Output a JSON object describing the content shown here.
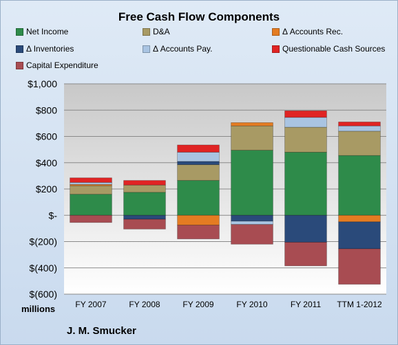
{
  "chart_data": {
    "type": "bar",
    "stacked": true,
    "title": "Free Cash Flow Components",
    "categories": [
      "FY 2007",
      "FY 2008",
      "FY 2009",
      "FY 2010",
      "FY 2011",
      "TTM 1-2012"
    ],
    "y_tick_labels": [
      "$1,000",
      "$800",
      "$600",
      "$400",
      "$200",
      "$-",
      "$(200)",
      "$(400)",
      "$(600)"
    ],
    "y_unit_label": "millions",
    "ylim": [
      -600,
      1000
    ],
    "grid": true,
    "legend_position": "top",
    "series": [
      {
        "name": "Net Income",
        "color": "#2e8b4a",
        "values": [
          160,
          175,
          265,
          495,
          480,
          455
        ]
      },
      {
        "name": "D&A",
        "color": "#a89a64",
        "values": [
          65,
          55,
          120,
          185,
          190,
          185
        ]
      },
      {
        "name": "Δ Accounts Rec.",
        "color": "#e47c22",
        "values": [
          10,
          0,
          -75,
          25,
          0,
          -50
        ]
      },
      {
        "name": "Δ Inventories",
        "color": "#2a4a7a",
        "values": [
          0,
          -30,
          25,
          -45,
          -205,
          -205
        ]
      },
      {
        "name": "Δ Accounts Pay.",
        "color": "#a9c4e2",
        "values": [
          15,
          0,
          70,
          -25,
          75,
          40
        ]
      },
      {
        "name": "Questionable Cash Sources",
        "color": "#e02424",
        "values": [
          35,
          35,
          55,
          0,
          50,
          30
        ]
      },
      {
        "name": "Capital Expenditure",
        "color": "#a84c52",
        "values": [
          -55,
          -75,
          -105,
          -150,
          -180,
          -270
        ]
      }
    ]
  },
  "footer": {
    "units": "millions",
    "company": "J. M. Smucker"
  }
}
